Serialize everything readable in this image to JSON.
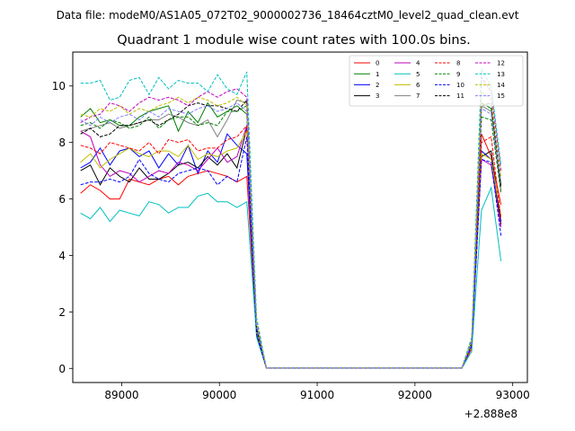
{
  "suptitle": "Data file: modeM0/AS1A05_072T02_9000002736_18464cztM0_level2_quad_clean.evt",
  "chart_data": {
    "type": "line",
    "title": "Quadrant 1 module wise count rates with 100.0s bins.",
    "xlabel": "",
    "ylabel": "",
    "x_offset_label": "+2.888e8",
    "xlim": [
      88500,
      93150
    ],
    "ylim": [
      -0.5,
      11.2
    ],
    "xticks": [
      89000,
      90000,
      91000,
      92000,
      93000
    ],
    "xtick_labels": [
      "89000",
      "90000",
      "91000",
      "92000",
      "93000"
    ],
    "yticks": [
      0,
      2,
      4,
      6,
      8,
      10
    ],
    "ytick_labels": [
      "0",
      "2",
      "4",
      "6",
      "8",
      "10"
    ],
    "grid": false,
    "legend_position": "top-right",
    "x": [
      88580,
      88680,
      88780,
      88880,
      88980,
      89080,
      89180,
      89280,
      89380,
      89480,
      89580,
      89680,
      89780,
      89880,
      89980,
      90080,
      90180,
      90280,
      90380,
      90480,
      90580,
      90680,
      90780,
      90880,
      90980,
      91080,
      91180,
      91280,
      91380,
      91480,
      91580,
      91680,
      91780,
      91880,
      91980,
      92080,
      92180,
      92280,
      92380,
      92480,
      92580,
      92680,
      92780,
      92880
    ],
    "series": [
      {
        "name": "0",
        "color": "#ff0000",
        "dash": "solid",
        "values": [
          6.2,
          6.5,
          6.3,
          6.0,
          6.0,
          6.7,
          6.6,
          6.5,
          6.7,
          6.8,
          6.5,
          6.8,
          6.9,
          7.0,
          6.9,
          6.8,
          6.6,
          6.8,
          1.2,
          0.01,
          0.01,
          0.01,
          0.01,
          0.01,
          0.01,
          0.01,
          0.01,
          0.01,
          0.01,
          0.01,
          0.01,
          0.01,
          0.01,
          0.01,
          0.01,
          0.01,
          0.01,
          0.01,
          0.01,
          0.01,
          0.7,
          8.3,
          7.5,
          5.8
        ]
      },
      {
        "name": "1",
        "color": "#008000",
        "dash": "solid",
        "values": [
          8.9,
          9.2,
          8.7,
          8.8,
          8.6,
          8.6,
          8.9,
          9.1,
          9.2,
          9.3,
          8.4,
          9.1,
          8.7,
          9.4,
          8.9,
          9.1,
          9.3,
          9.0,
          1.5,
          0.02,
          0.02,
          0.02,
          0.02,
          0.02,
          0.02,
          0.02,
          0.02,
          0.02,
          0.02,
          0.02,
          0.02,
          0.02,
          0.02,
          0.02,
          0.02,
          0.02,
          0.02,
          0.02,
          0.02,
          0.02,
          0.9,
          9.4,
          9.2,
          6.5
        ]
      },
      {
        "name": "2",
        "color": "#0000ff",
        "dash": "solid",
        "values": [
          7.1,
          7.3,
          7.8,
          7.2,
          7.7,
          7.8,
          7.5,
          7.7,
          7.1,
          7.6,
          7.2,
          7.9,
          6.9,
          7.7,
          7.3,
          8.3,
          7.9,
          7.6,
          1.3,
          0.01,
          0.01,
          0.01,
          0.01,
          0.01,
          0.01,
          0.01,
          0.01,
          0.01,
          0.01,
          0.01,
          0.01,
          0.01,
          0.01,
          0.01,
          0.01,
          0.01,
          0.01,
          0.01,
          0.01,
          0.01,
          0.8,
          7.7,
          7.4,
          5.2
        ]
      },
      {
        "name": "3",
        "color": "#000000",
        "dash": "solid",
        "values": [
          7.0,
          7.2,
          6.5,
          7.1,
          6.8,
          6.6,
          7.1,
          6.7,
          6.7,
          6.9,
          7.2,
          7.3,
          7.1,
          7.5,
          7.2,
          7.6,
          7.1,
          8.5,
          1.2,
          0.01,
          0.01,
          0.01,
          0.01,
          0.01,
          0.01,
          0.01,
          0.01,
          0.01,
          0.01,
          0.01,
          0.01,
          0.01,
          0.01,
          0.01,
          0.01,
          0.01,
          0.01,
          0.01,
          0.01,
          0.01,
          0.8,
          7.5,
          7.7,
          5.1
        ]
      },
      {
        "name": "4",
        "color": "#bf00bf",
        "dash": "solid",
        "values": [
          8.4,
          8.2,
          7.2,
          6.8,
          7.0,
          6.9,
          6.6,
          6.8,
          7.0,
          6.9,
          7.3,
          7.2,
          7.0,
          7.4,
          7.8,
          7.3,
          7.5,
          8.6,
          1.3,
          0.01,
          0.01,
          0.01,
          0.01,
          0.01,
          0.01,
          0.01,
          0.01,
          0.01,
          0.01,
          0.01,
          0.01,
          0.01,
          0.01,
          0.01,
          0.01,
          0.01,
          0.01,
          0.01,
          0.01,
          0.01,
          0.8,
          7.4,
          7.2,
          5.0
        ]
      },
      {
        "name": "5",
        "color": "#00bfbf",
        "dash": "solid",
        "values": [
          5.5,
          5.3,
          5.7,
          5.2,
          5.6,
          5.5,
          5.4,
          5.9,
          5.8,
          5.5,
          5.7,
          5.7,
          6.1,
          6.2,
          5.9,
          5.9,
          5.7,
          5.9,
          1.1,
          0.01,
          0.01,
          0.01,
          0.01,
          0.01,
          0.01,
          0.01,
          0.01,
          0.01,
          0.01,
          0.01,
          0.01,
          0.01,
          0.01,
          0.01,
          0.01,
          0.01,
          0.01,
          0.01,
          0.01,
          0.01,
          0.6,
          5.6,
          6.4,
          3.8
        ]
      },
      {
        "name": "6",
        "color": "#bfbf00",
        "dash": "solid",
        "values": [
          7.3,
          7.6,
          7.1,
          7.4,
          7.6,
          7.8,
          7.6,
          7.5,
          7.7,
          7.7,
          7.5,
          7.9,
          7.4,
          7.6,
          7.5,
          7.7,
          7.8,
          8.4,
          1.3,
          0.01,
          0.01,
          0.01,
          0.01,
          0.01,
          0.01,
          0.01,
          0.01,
          0.01,
          0.01,
          0.01,
          0.01,
          0.01,
          0.01,
          0.01,
          0.01,
          0.01,
          0.01,
          0.01,
          0.01,
          0.01,
          0.8,
          7.6,
          7.4,
          5.4
        ]
      },
      {
        "name": "7",
        "color": "#808080",
        "dash": "solid",
        "values": [
          8.4,
          8.5,
          8.6,
          8.7,
          8.5,
          8.6,
          8.7,
          8.8,
          8.8,
          9.0,
          8.9,
          8.7,
          8.6,
          8.8,
          8.2,
          8.8,
          9.5,
          9.4,
          1.4,
          0.02,
          0.02,
          0.02,
          0.02,
          0.02,
          0.02,
          0.02,
          0.02,
          0.02,
          0.02,
          0.02,
          0.02,
          0.02,
          0.02,
          0.02,
          0.02,
          0.02,
          0.02,
          0.02,
          0.02,
          0.02,
          0.9,
          9.3,
          9.1,
          6.3
        ]
      },
      {
        "name": "8",
        "color": "#ff0000",
        "dash": "dashed",
        "values": [
          7.9,
          7.8,
          7.6,
          8.0,
          7.9,
          7.8,
          7.7,
          8.0,
          7.6,
          8.1,
          8.0,
          8.1,
          7.7,
          7.8,
          7.8,
          8.1,
          8.2,
          8.6,
          1.4,
          0.01,
          0.01,
          0.01,
          0.01,
          0.01,
          0.01,
          0.01,
          0.01,
          0.01,
          0.01,
          0.01,
          0.01,
          0.01,
          0.01,
          0.01,
          0.01,
          0.01,
          0.01,
          0.01,
          0.01,
          0.01,
          0.9,
          8.0,
          8.2,
          5.3
        ]
      },
      {
        "name": "9",
        "color": "#008000",
        "dash": "dashed",
        "values": [
          8.6,
          8.7,
          8.5,
          8.8,
          8.7,
          8.5,
          8.6,
          8.9,
          8.5,
          8.8,
          8.9,
          8.9,
          8.6,
          8.7,
          8.6,
          9.1,
          9.1,
          9.3,
          1.5,
          0.02,
          0.02,
          0.02,
          0.02,
          0.02,
          0.02,
          0.02,
          0.02,
          0.02,
          0.02,
          0.02,
          0.02,
          0.02,
          0.02,
          0.02,
          0.02,
          0.02,
          0.02,
          0.02,
          0.02,
          0.02,
          0.9,
          8.9,
          8.8,
          6.2
        ]
      },
      {
        "name": "10",
        "color": "#0000ff",
        "dash": "dashed",
        "values": [
          6.5,
          6.6,
          6.6,
          6.7,
          6.6,
          6.8,
          7.4,
          6.9,
          6.7,
          6.6,
          6.9,
          7.0,
          7.1,
          7.0,
          6.5,
          6.8,
          6.6,
          8.2,
          1.2,
          0.01,
          0.01,
          0.01,
          0.01,
          0.01,
          0.01,
          0.01,
          0.01,
          0.01,
          0.01,
          0.01,
          0.01,
          0.01,
          0.01,
          0.01,
          0.01,
          0.01,
          0.01,
          0.01,
          0.01,
          0.01,
          0.8,
          7.4,
          7.3,
          4.7
        ]
      },
      {
        "name": "11",
        "color": "#000000",
        "dash": "dashed",
        "values": [
          8.3,
          8.5,
          8.2,
          8.3,
          8.6,
          8.6,
          8.7,
          8.8,
          8.6,
          8.8,
          9.0,
          9.3,
          9.4,
          9.3,
          9.3,
          9.2,
          9.1,
          9.5,
          1.4,
          0.02,
          0.02,
          0.02,
          0.02,
          0.02,
          0.02,
          0.02,
          0.02,
          0.02,
          0.02,
          0.02,
          0.02,
          0.02,
          0.02,
          0.02,
          0.02,
          0.02,
          0.02,
          0.02,
          0.02,
          0.02,
          0.9,
          9.3,
          9.4,
          6.4
        ]
      },
      {
        "name": "12",
        "color": "#bf00bf",
        "dash": "dashed",
        "values": [
          8.7,
          8.9,
          9.0,
          9.4,
          9.3,
          9.1,
          9.4,
          9.6,
          9.5,
          9.6,
          9.5,
          9.3,
          9.6,
          9.8,
          9.6,
          9.8,
          9.9,
          9.6,
          1.6,
          0.02,
          0.02,
          0.02,
          0.02,
          0.02,
          0.02,
          0.02,
          0.02,
          0.02,
          0.02,
          0.02,
          0.02,
          0.02,
          0.02,
          0.02,
          0.02,
          0.02,
          0.02,
          0.02,
          0.02,
          0.02,
          1.0,
          10.3,
          9.8,
          7.0
        ]
      },
      {
        "name": "13",
        "color": "#00bfbf",
        "dash": "dashed",
        "values": [
          10.1,
          10.1,
          10.2,
          9.5,
          9.6,
          10.2,
          10.3,
          9.7,
          10.3,
          9.9,
          10.2,
          10.1,
          10.1,
          9.8,
          10.4,
          9.9,
          9.7,
          10.5,
          1.8,
          0.02,
          0.02,
          0.02,
          0.02,
          0.02,
          0.02,
          0.02,
          0.02,
          0.02,
          0.02,
          0.02,
          0.02,
          0.02,
          0.02,
          0.02,
          0.02,
          0.02,
          0.02,
          0.02,
          0.02,
          0.02,
          1.1,
          10.6,
          10.0,
          7.2
        ]
      },
      {
        "name": "14",
        "color": "#bfbf00",
        "dash": "dashed",
        "values": [
          9.0,
          8.9,
          9.2,
          9.1,
          9.3,
          9.0,
          9.2,
          9.1,
          9.3,
          9.4,
          9.6,
          9.4,
          9.6,
          9.5,
          9.3,
          9.4,
          9.6,
          9.3,
          1.6,
          0.02,
          0.02,
          0.02,
          0.02,
          0.02,
          0.02,
          0.02,
          0.02,
          0.02,
          0.02,
          0.02,
          0.02,
          0.02,
          0.02,
          0.02,
          0.02,
          0.02,
          0.02,
          0.02,
          0.02,
          0.02,
          1.0,
          9.8,
          9.5,
          6.8
        ]
      },
      {
        "name": "15",
        "color": "#8080ff",
        "dash": "dashed",
        "values": [
          8.8,
          8.6,
          8.9,
          8.7,
          8.9,
          9.0,
          8.8,
          9.1,
          8.9,
          9.2,
          9.1,
          9.0,
          9.2,
          9.3,
          9.1,
          9.2,
          9.4,
          9.1,
          1.5,
          0.02,
          0.02,
          0.02,
          0.02,
          0.02,
          0.02,
          0.02,
          0.02,
          0.02,
          0.02,
          0.02,
          0.02,
          0.02,
          0.02,
          0.02,
          0.02,
          0.02,
          0.02,
          0.02,
          0.02,
          0.02,
          0.9,
          9.2,
          9.0,
          6.6
        ]
      }
    ]
  }
}
